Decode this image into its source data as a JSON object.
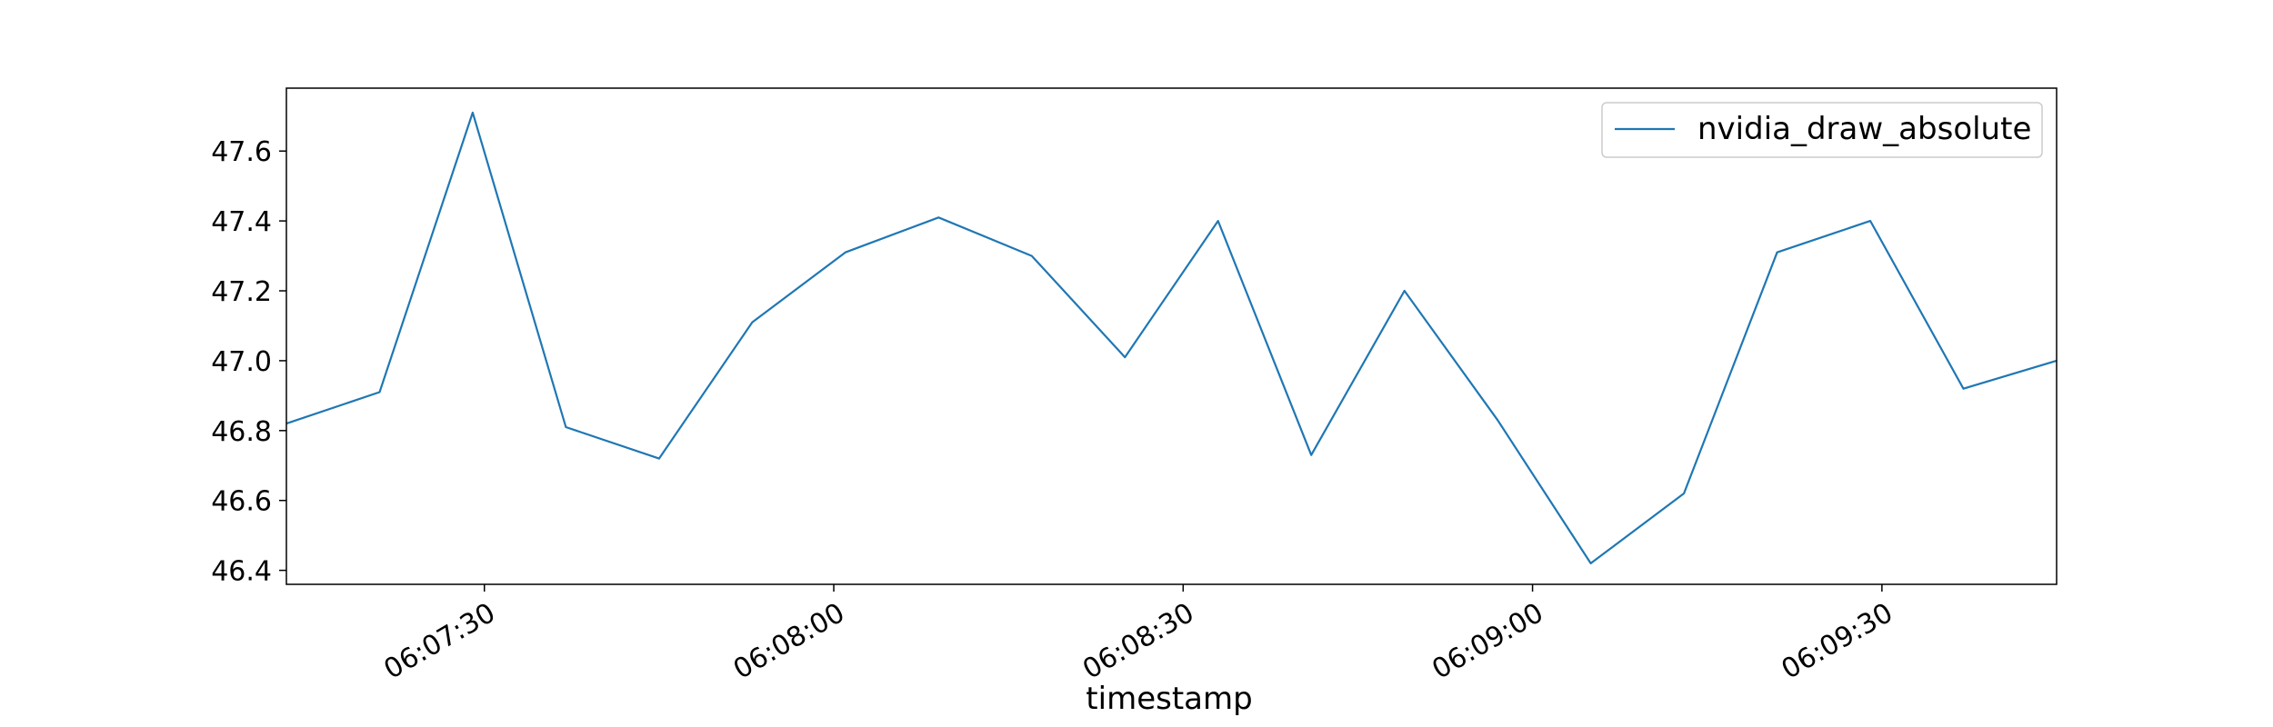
{
  "chart_data": {
    "type": "line",
    "xlabel": "timestamp",
    "ylabel": "",
    "x": [
      "06:07:13",
      "06:07:21",
      "06:07:29",
      "06:07:37",
      "06:07:45",
      "06:07:53",
      "06:08:01",
      "06:08:09",
      "06:08:17",
      "06:08:25",
      "06:08:33",
      "06:08:41",
      "06:08:49",
      "06:08:57",
      "06:09:05",
      "06:09:13",
      "06:09:21",
      "06:09:29",
      "06:09:37",
      "06:09:45"
    ],
    "x_ticks": [
      "06:07:30",
      "06:08:00",
      "06:08:30",
      "06:09:00",
      "06:09:30"
    ],
    "xlim": [
      "06:07:13",
      "06:09:45"
    ],
    "y_ticks": [
      "46.4",
      "46.6",
      "46.8",
      "47.0",
      "47.2",
      "47.4",
      "47.6"
    ],
    "ylim": [
      46.36,
      47.78
    ],
    "series": [
      {
        "name": "nvidia_draw_absolute",
        "color": "#1f77b4",
        "values": [
          46.82,
          46.91,
          47.71,
          46.81,
          46.72,
          47.11,
          47.31,
          47.41,
          47.3,
          47.01,
          47.4,
          46.73,
          47.2,
          46.83,
          46.42,
          46.62,
          47.31,
          47.4,
          46.92,
          47.0
        ]
      }
    ],
    "legend_position": "top-right",
    "grid": false
  }
}
